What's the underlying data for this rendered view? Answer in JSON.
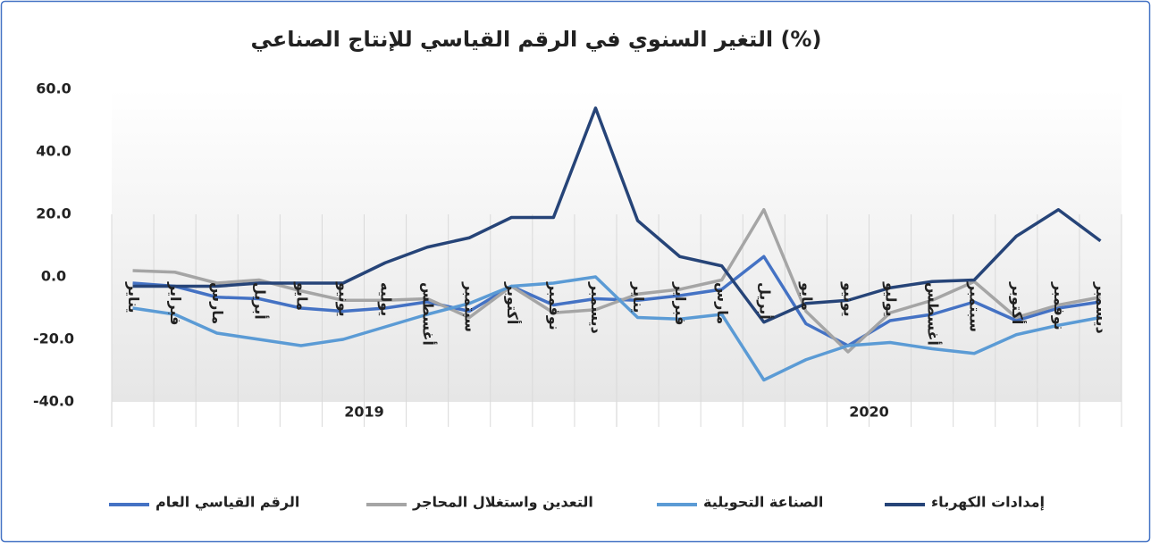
{
  "chart_data": {
    "type": "line",
    "title": "التغير السنوي في الرقم القياسي للإنتاج الصناعي (%)",
    "categories": [
      "يناير",
      "فبراير",
      "مارس",
      "أبريل",
      "مايو",
      "يونيو",
      "يوليه",
      "أغسطس",
      "سبتمبر",
      "أكتوبر",
      "نوفمبر",
      "ديسمبر",
      "يناير",
      "فبراير",
      "مارس",
      "أبريل",
      "مايو",
      "يونيو",
      "يوليو",
      "أغسطس",
      "سبتمبر",
      "أكتوبر",
      "نوفمبر",
      "ديسمبر"
    ],
    "groups": [
      "2019",
      "2020"
    ],
    "series": [
      {
        "name": "الرقم القياسي العام",
        "color": "#4472c4",
        "values": [
          -2,
          -3,
          -6.5,
          -7,
          -10,
          -11,
          -10,
          -8,
          -11,
          -3,
          -9,
          -7,
          -7.5,
          -6,
          -4,
          6.5,
          -15,
          -22,
          -14,
          -12,
          -8,
          -14,
          -10,
          -8
        ]
      },
      {
        "name": "التعدين واستغلال المحاجر",
        "color": "#a5a5a5",
        "values": [
          2,
          1.5,
          -2,
          -1,
          -4.5,
          -7.5,
          -7.5,
          -7,
          -13,
          -3,
          -11.5,
          -10.5,
          -5.5,
          -4,
          -1,
          21.5,
          -11,
          -24,
          -11.5,
          -7.5,
          -1.5,
          -13,
          -9,
          -6.5
        ]
      },
      {
        "name": "الصناعة التحويلية",
        "color": "#5b9bd5",
        "values": [
          -10,
          -12,
          -18,
          -20,
          -22,
          -20,
          -16,
          -12,
          -8.5,
          -3,
          -2,
          0,
          -13,
          -13.5,
          -12,
          -33,
          -26.5,
          -22,
          -21,
          -23,
          -24.5,
          -18.5,
          -15.5,
          -13
        ]
      },
      {
        "name": "إمدادات الكهرباء",
        "color": "#264478",
        "values": [
          -3,
          -3,
          -3,
          -2,
          -2,
          -2,
          4.5,
          9.5,
          12.5,
          19,
          19,
          54,
          18,
          6.5,
          3.5,
          -14.5,
          -8.5,
          -7.5,
          -3.5,
          -1.5,
          -1,
          13,
          21.5,
          11.5
        ]
      }
    ],
    "ylim": [
      -40,
      60
    ],
    "yticks": [
      {
        "value": 60,
        "label": "60.0"
      },
      {
        "value": 40,
        "label": "40.0"
      },
      {
        "value": 20,
        "label": "20.0"
      },
      {
        "value": 0,
        "label": "0.0"
      },
      {
        "value": -20,
        "label": "-20.0"
      },
      {
        "value": -40,
        "label": "-40.0"
      }
    ]
  }
}
